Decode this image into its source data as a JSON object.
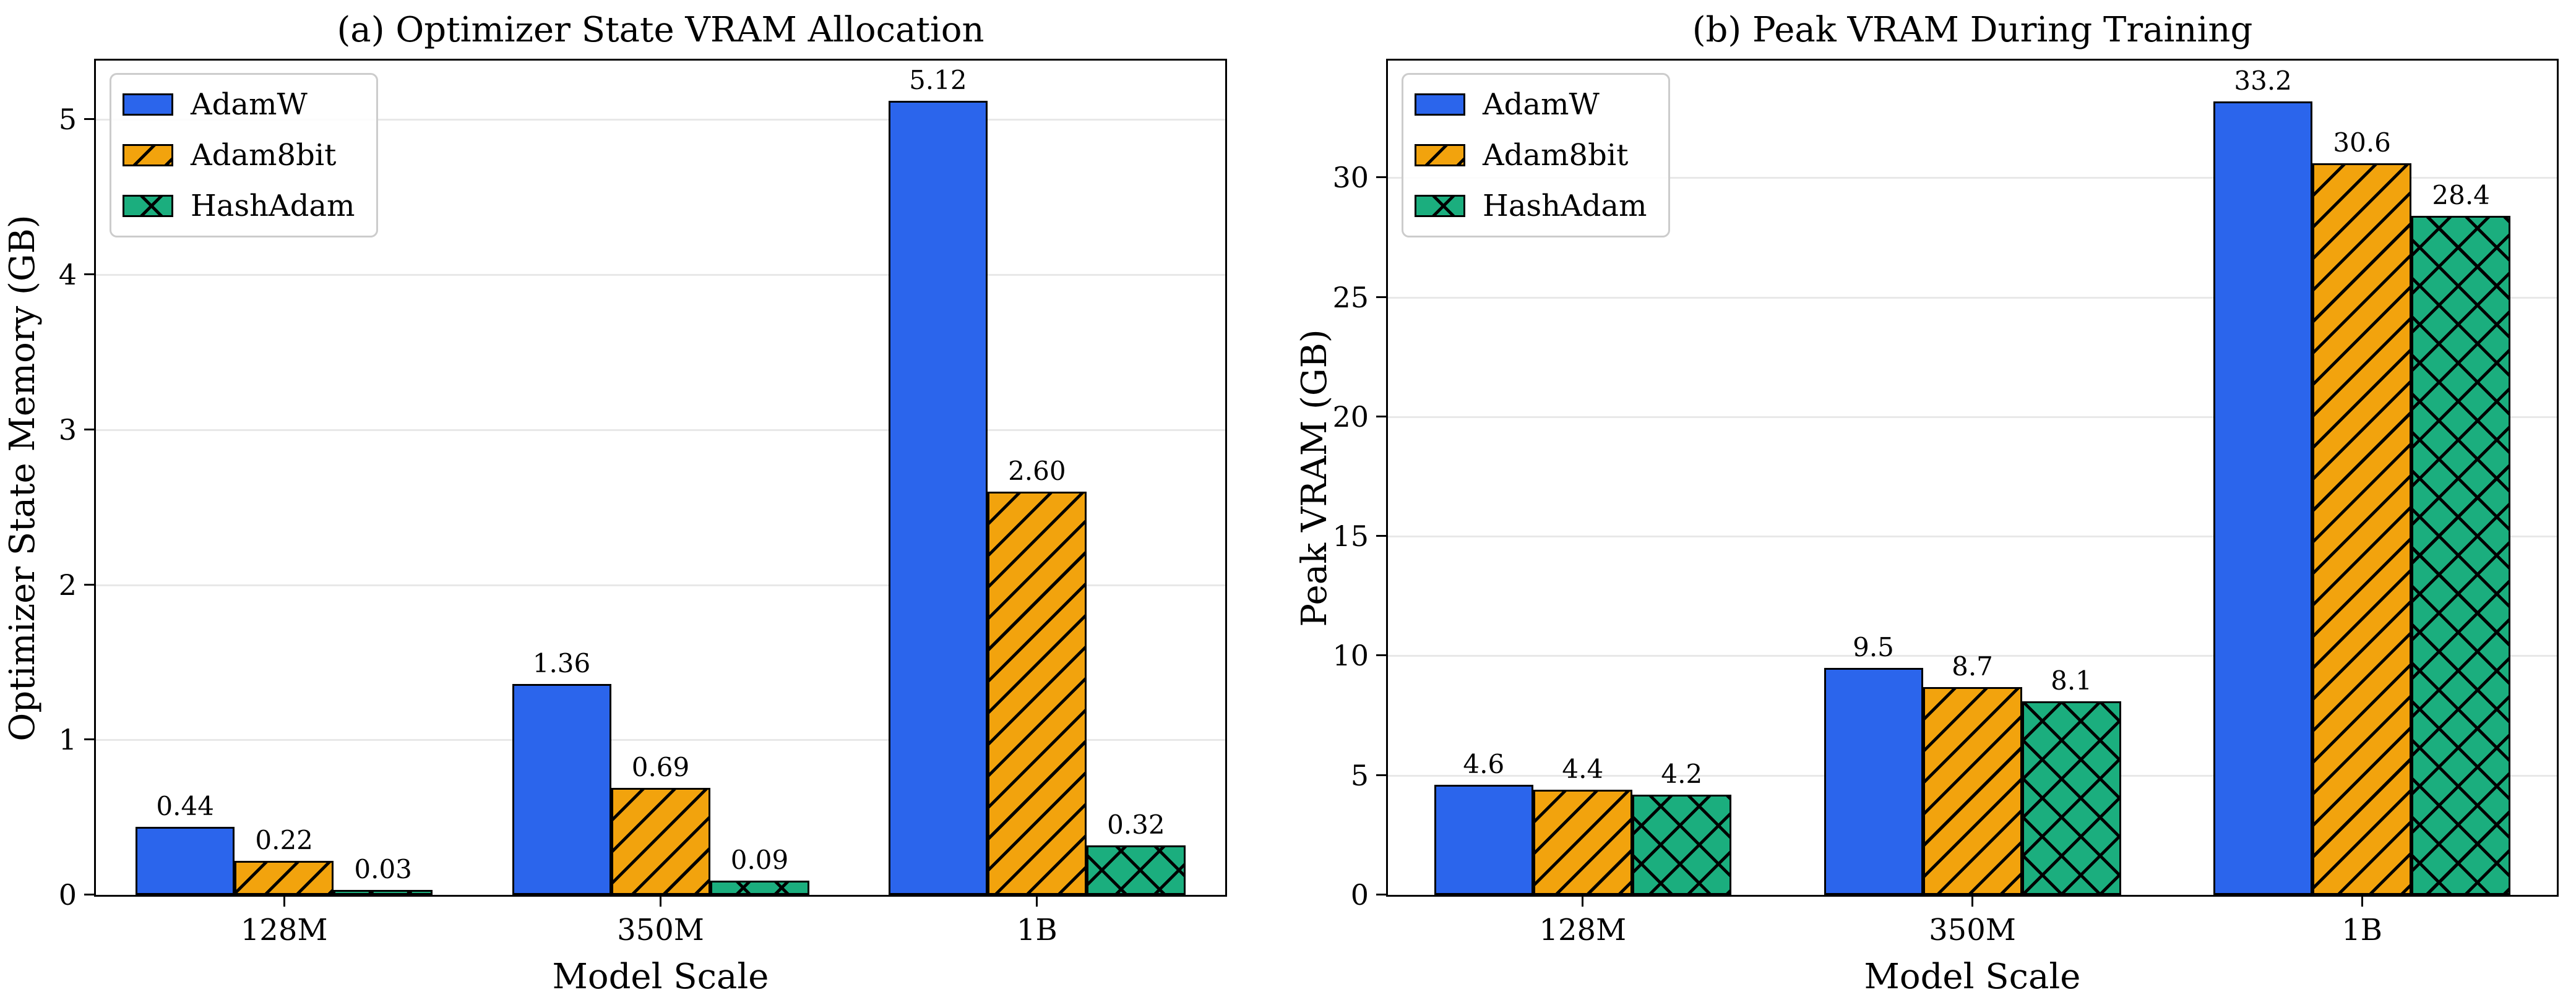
{
  "figure": {
    "background": "#ffffff",
    "spine_color": "#000000",
    "gridline_color": "#e8e8e8"
  },
  "legend": {
    "entries": [
      {
        "label": "AdamW",
        "color": "#2b65ec",
        "hatch": "none"
      },
      {
        "label": "Adam8bit",
        "color": "#f2a30d",
        "hatch": "diagonal"
      },
      {
        "label": "HashAdam",
        "color": "#1bae7e",
        "hatch": "cross"
      }
    ]
  },
  "chart_data": [
    {
      "type": "bar",
      "title": "(a) Optimizer State VRAM Allocation",
      "xlabel": "Model Scale",
      "ylabel": "Optimizer State Memory (GB)",
      "categories": [
        "128M",
        "350M",
        "1B"
      ],
      "series": [
        {
          "name": "AdamW",
          "color": "#2b65ec",
          "hatch": "none",
          "values": [
            0.44,
            1.36,
            5.12
          ],
          "labels": [
            "0.44",
            "1.36",
            "5.12"
          ]
        },
        {
          "name": "Adam8bit",
          "color": "#f2a30d",
          "hatch": "diagonal",
          "values": [
            0.22,
            0.69,
            2.6
          ],
          "labels": [
            "0.22",
            "0.69",
            "2.60"
          ]
        },
        {
          "name": "HashAdam",
          "color": "#1bae7e",
          "hatch": "cross",
          "values": [
            0.03,
            0.09,
            0.32
          ],
          "labels": [
            "0.03",
            "0.09",
            "0.32"
          ]
        }
      ],
      "yticks": [
        0,
        1,
        2,
        3,
        4,
        5
      ],
      "ytick_labels": [
        "0",
        "1",
        "2",
        "3",
        "4",
        "5"
      ],
      "ylim": [
        0,
        5.38
      ],
      "grid": true,
      "legend_position": "upper-left"
    },
    {
      "type": "bar",
      "title": "(b) Peak VRAM During Training",
      "xlabel": "Model Scale",
      "ylabel": "Peak VRAM (GB)",
      "categories": [
        "128M",
        "350M",
        "1B"
      ],
      "series": [
        {
          "name": "AdamW",
          "color": "#2b65ec",
          "hatch": "none",
          "values": [
            4.6,
            9.5,
            33.2
          ],
          "labels": [
            "4.6",
            "9.5",
            "33.2"
          ]
        },
        {
          "name": "Adam8bit",
          "color": "#f2a30d",
          "hatch": "diagonal",
          "values": [
            4.4,
            8.7,
            30.6
          ],
          "labels": [
            "4.4",
            "8.7",
            "30.6"
          ]
        },
        {
          "name": "HashAdam",
          "color": "#1bae7e",
          "hatch": "cross",
          "values": [
            4.2,
            8.1,
            28.4
          ],
          "labels": [
            "4.2",
            "8.1",
            "28.4"
          ]
        }
      ],
      "yticks": [
        0,
        5,
        10,
        15,
        20,
        25,
        30
      ],
      "ytick_labels": [
        "0",
        "5",
        "10",
        "15",
        "20",
        "25",
        "30"
      ],
      "ylim": [
        0,
        34.9
      ],
      "grid": true,
      "legend_position": "upper-left"
    }
  ]
}
